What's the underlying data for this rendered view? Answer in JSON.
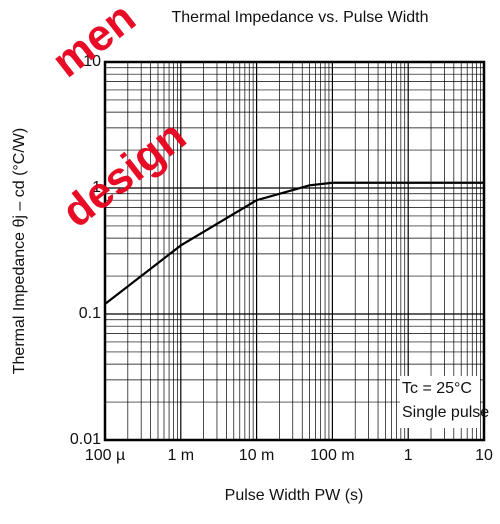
{
  "chart_data": {
    "type": "line",
    "title": "Thermal Impedance vs. Pulse Width",
    "x_label": "Pulse Width   PW  (s)",
    "y_label": "Thermal Impedance   θj – cd   (°C/W)",
    "x_log": true,
    "y_log": true,
    "grid": true,
    "minor_grid": true,
    "xlim": [
      0.0001,
      10
    ],
    "ylim": [
      0.01,
      10
    ],
    "xticks": [
      {
        "value": 0.0001,
        "label": "100 µ"
      },
      {
        "value": 0.001,
        "label": "1 m"
      },
      {
        "value": 0.01,
        "label": "10 m"
      },
      {
        "value": 0.1,
        "label": "100 m"
      },
      1,
      10
    ],
    "yticks": [
      0.01,
      0.1,
      1,
      10
    ],
    "x": [
      0.0001,
      0.001,
      0.01,
      0.02,
      0.05,
      0.1,
      1,
      10
    ],
    "series": [
      {
        "name": null,
        "color": "#000000",
        "values": [
          0.12,
          0.35,
          0.8,
          0.9,
          1.05,
          1.1,
          1.1,
          1.1
        ]
      }
    ],
    "annotations": [
      "Tc = 25°C",
      "Single pulse"
    ],
    "watermark": [
      "men",
      "design"
    ]
  }
}
